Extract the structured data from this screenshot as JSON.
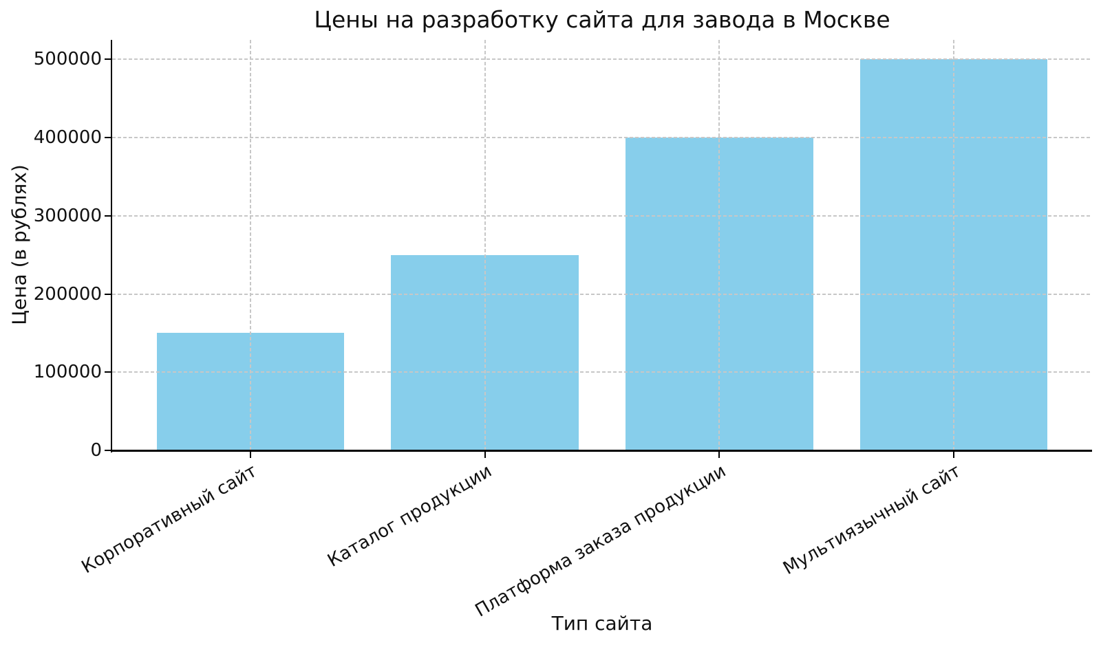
{
  "chart_data": {
    "type": "bar",
    "title": "Цены на разработку сайта для завода в Москве",
    "xlabel": "Тип сайта",
    "ylabel": "Цена (в рублях)",
    "categories": [
      "Корпоративный сайт",
      "Каталог продукции",
      "Платформа заказа продукции",
      "Мультиязычный сайт"
    ],
    "values": [
      150000,
      250000,
      400000,
      500000
    ],
    "yticks": [
      0,
      100000,
      200000,
      300000,
      400000,
      500000
    ],
    "ytick_labels": [
      "0",
      "100000",
      "200000",
      "300000",
      "400000",
      "500000"
    ],
    "ylim": [
      0,
      525000
    ],
    "xlim": [
      -0.59,
      3.59
    ],
    "bar_width_units": 0.8,
    "xtick_rotation_deg": 30,
    "bar_color": "#87CEEB",
    "grid_color": "#c7c7c7",
    "grid_style": "dashed",
    "axis_color": "#000000",
    "background_color": "#ffffff",
    "legend": null
  }
}
